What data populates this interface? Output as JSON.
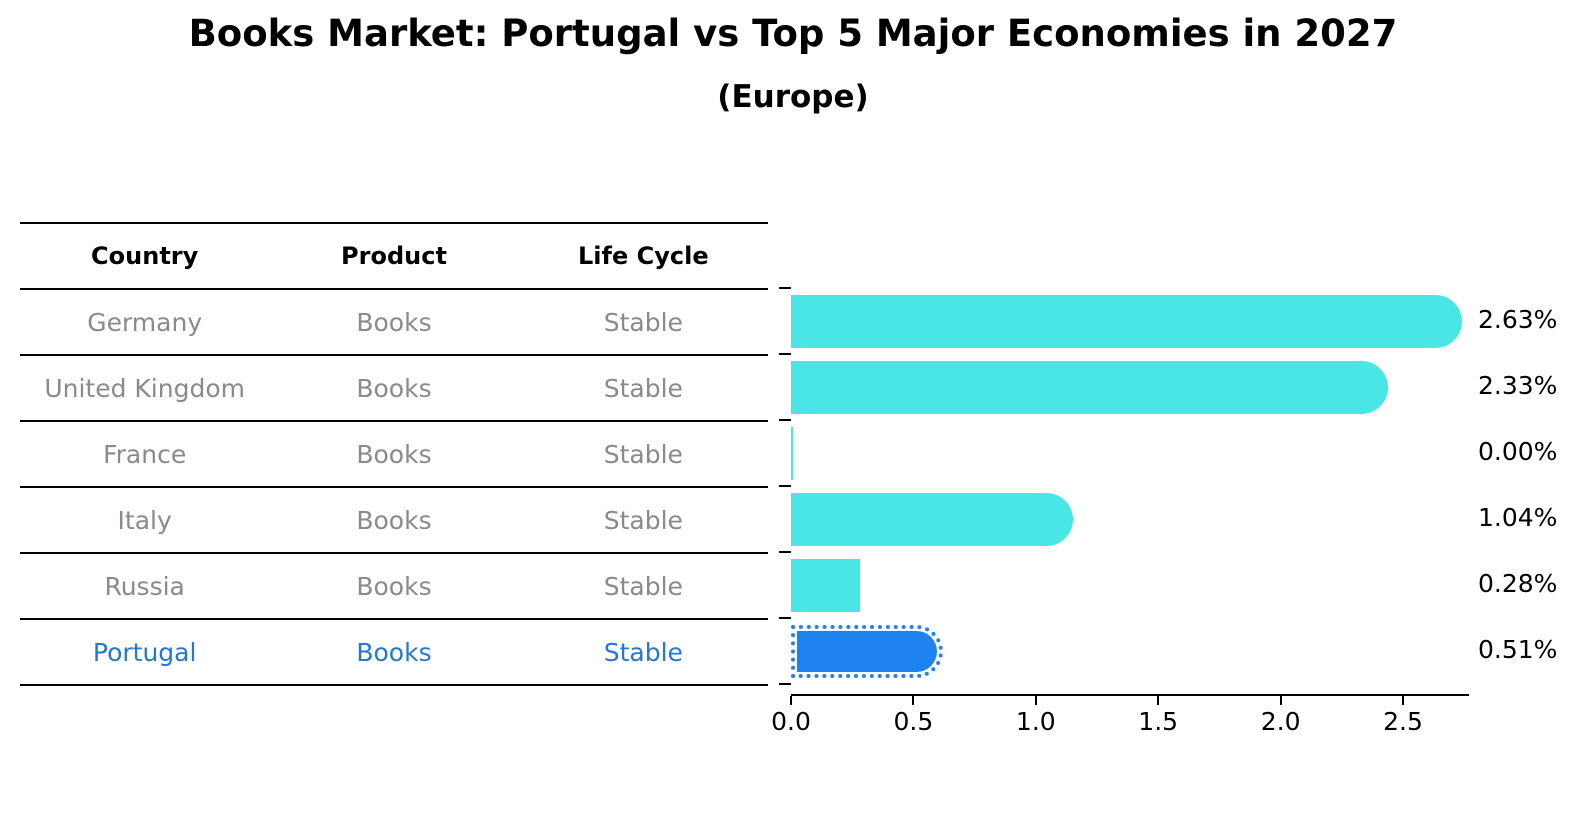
{
  "header": {
    "title": "Books Market: Portugal vs Top 5 Major Economies in 2027",
    "subtitle": "(Europe)"
  },
  "table": {
    "headers": [
      "Country",
      "Product",
      "Life Cycle"
    ],
    "rows": [
      {
        "country": "Germany",
        "product": "Books",
        "life_cycle": "Stable",
        "highlight": false
      },
      {
        "country": "United Kingdom",
        "product": "Books",
        "life_cycle": "Stable",
        "highlight": false
      },
      {
        "country": "France",
        "product": "Books",
        "life_cycle": "Stable",
        "highlight": false
      },
      {
        "country": "Italy",
        "product": "Books",
        "life_cycle": "Stable",
        "highlight": false
      },
      {
        "country": "Russia",
        "product": "Books",
        "life_cycle": "Stable",
        "highlight": false
      },
      {
        "country": "Portugal",
        "product": "Books",
        "life_cycle": "Stable",
        "highlight": true
      }
    ]
  },
  "chart_data": {
    "type": "bar",
    "orientation": "horizontal",
    "title": "Books Market: Portugal vs Top 5 Major Economies in 2027 (Europe)",
    "categories": [
      "Germany",
      "United Kingdom",
      "France",
      "Italy",
      "Russia",
      "Portugal"
    ],
    "values": [
      2.63,
      2.33,
      0.0,
      1.04,
      0.28,
      0.51
    ],
    "value_labels": [
      "2.63%",
      "2.33%",
      "0.00%",
      "1.04%",
      "0.28%",
      "0.51%"
    ],
    "unit": "%",
    "x_ticks": [
      "0.0",
      "0.5",
      "1.0",
      "1.5",
      "2.0",
      "2.5"
    ],
    "x_tick_values": [
      0.0,
      0.5,
      1.0,
      1.5,
      2.0,
      2.5
    ],
    "xlim": [
      0,
      2.77
    ],
    "grid": false,
    "legend": false,
    "highlight_category": "Portugal",
    "colors": {
      "bar": "#4ae6e6",
      "highlight_bar": "#1e83f0",
      "highlight_text": "#2478cf",
      "muted_text": "#8a8a8a",
      "ink": "#000000"
    }
  }
}
